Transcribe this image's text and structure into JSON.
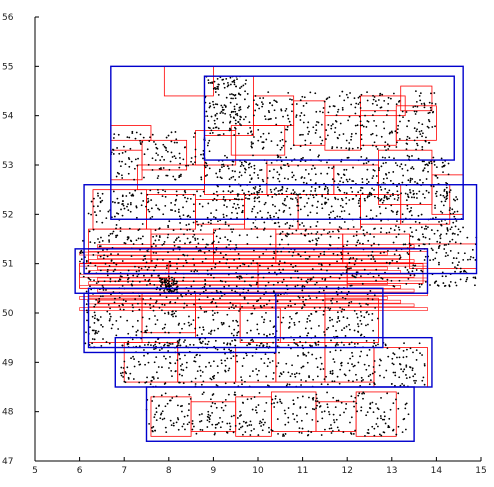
{
  "chart_data": {
    "type": "scatter",
    "title": "",
    "xlabel": "",
    "ylabel": "",
    "xlim": [
      5,
      15
    ],
    "ylim": [
      47,
      56
    ],
    "x_ticks": [
      "5",
      "6",
      "7",
      "8",
      "9",
      "10",
      "11",
      "12",
      "13",
      "14",
      "15"
    ],
    "y_ticks": [
      "47",
      "48",
      "49",
      "50",
      "51",
      "52",
      "53",
      "54",
      "55",
      "56"
    ],
    "grid": false,
    "colors": {
      "points": "#000000",
      "leaf_boxes": "#ff0000",
      "parent_boxes": "#0000cc",
      "axes": "#000000"
    },
    "parent_boxes": [
      {
        "x0": 6.7,
        "x1": 14.6,
        "y0": 51.9,
        "y1": 55.0
      },
      {
        "x0": 8.8,
        "x1": 14.4,
        "y0": 53.1,
        "y1": 54.8
      },
      {
        "x0": 6.1,
        "x1": 14.9,
        "y0": 50.8,
        "y1": 52.6
      },
      {
        "x0": 5.9,
        "x1": 13.8,
        "y0": 50.4,
        "y1": 51.3
      },
      {
        "x0": 6.2,
        "x1": 12.8,
        "y0": 49.3,
        "y1": 50.5
      },
      {
        "x0": 6.1,
        "x1": 10.4,
        "y0": 49.2,
        "y1": 50.4
      },
      {
        "x0": 6.8,
        "x1": 13.9,
        "y0": 48.5,
        "y1": 49.5
      },
      {
        "x0": 7.5,
        "x1": 13.5,
        "y0": 47.4,
        "y1": 48.5
      }
    ],
    "leaf_boxes": [
      {
        "x0": 7.9,
        "x1": 9.0,
        "y0": 54.4,
        "y1": 55.0
      },
      {
        "x0": 8.8,
        "x1": 9.9,
        "y0": 53.6,
        "y1": 54.8
      },
      {
        "x0": 9.9,
        "x1": 10.8,
        "y0": 53.8,
        "y1": 54.4
      },
      {
        "x0": 10.8,
        "x1": 11.5,
        "y0": 53.4,
        "y1": 54.3
      },
      {
        "x0": 11.5,
        "x1": 12.3,
        "y0": 53.3,
        "y1": 54.0
      },
      {
        "x0": 12.3,
        "x1": 13.1,
        "y0": 53.4,
        "y1": 54.1
      },
      {
        "x0": 13.1,
        "x1": 14.0,
        "y0": 53.5,
        "y1": 54.2
      },
      {
        "x0": 13.2,
        "x1": 13.9,
        "y0": 54.1,
        "y1": 54.6
      },
      {
        "x0": 12.3,
        "x1": 13.3,
        "y0": 54.0,
        "y1": 54.4
      },
      {
        "x0": 9.4,
        "x1": 10.6,
        "y0": 53.2,
        "y1": 53.8
      },
      {
        "x0": 8.6,
        "x1": 9.5,
        "y0": 53.0,
        "y1": 53.7
      },
      {
        "x0": 7.4,
        "x1": 8.4,
        "y0": 52.9,
        "y1": 53.5
      },
      {
        "x0": 6.7,
        "x1": 7.4,
        "y0": 52.7,
        "y1": 53.3
      },
      {
        "x0": 6.7,
        "x1": 7.6,
        "y0": 53.5,
        "y1": 53.8
      },
      {
        "x0": 12.7,
        "x1": 13.9,
        "y0": 52.2,
        "y1": 53.3
      },
      {
        "x0": 13.9,
        "x1": 14.6,
        "y0": 52.0,
        "y1": 52.8
      },
      {
        "x0": 11.7,
        "x1": 12.7,
        "y0": 52.4,
        "y1": 53.0
      },
      {
        "x0": 10.2,
        "x1": 11.7,
        "y0": 52.4,
        "y1": 53.0
      },
      {
        "x0": 8.8,
        "x1": 10.2,
        "y0": 52.4,
        "y1": 53.1
      },
      {
        "x0": 7.3,
        "x1": 8.8,
        "y0": 52.5,
        "y1": 53.0
      },
      {
        "x0": 6.3,
        "x1": 7.5,
        "y0": 51.7,
        "y1": 52.5
      },
      {
        "x0": 7.5,
        "x1": 8.6,
        "y0": 51.7,
        "y1": 52.4
      },
      {
        "x0": 8.6,
        "x1": 9.7,
        "y0": 51.8,
        "y1": 52.3
      },
      {
        "x0": 9.7,
        "x1": 10.9,
        "y0": 51.7,
        "y1": 52.4
      },
      {
        "x0": 10.9,
        "x1": 12.3,
        "y0": 51.7,
        "y1": 52.4
      },
      {
        "x0": 12.3,
        "x1": 13.2,
        "y0": 51.8,
        "y1": 52.4
      },
      {
        "x0": 13.2,
        "x1": 14.3,
        "y0": 51.8,
        "y1": 52.6
      },
      {
        "x0": 6.2,
        "x1": 7.6,
        "y0": 51.0,
        "y1": 51.7
      },
      {
        "x0": 7.6,
        "x1": 9.0,
        "y0": 51.0,
        "y1": 51.6
      },
      {
        "x0": 9.0,
        "x1": 10.4,
        "y0": 51.1,
        "y1": 51.7
      },
      {
        "x0": 10.4,
        "x1": 11.9,
        "y0": 51.0,
        "y1": 51.6
      },
      {
        "x0": 11.9,
        "x1": 13.4,
        "y0": 51.0,
        "y1": 51.6
      },
      {
        "x0": 13.4,
        "x1": 14.9,
        "y0": 50.9,
        "y1": 51.4
      },
      {
        "x0": 6.0,
        "x1": 8.0,
        "y0": 50.5,
        "y1": 51.0
      },
      {
        "x0": 8.0,
        "x1": 10.0,
        "y0": 50.5,
        "y1": 51.0
      },
      {
        "x0": 10.0,
        "x1": 12.0,
        "y0": 50.5,
        "y1": 51.0
      },
      {
        "x0": 12.0,
        "x1": 13.7,
        "y0": 50.6,
        "y1": 51.0
      },
      {
        "x0": 6.2,
        "x1": 7.4,
        "y0": 49.4,
        "y1": 50.3
      },
      {
        "x0": 7.4,
        "x1": 8.6,
        "y0": 49.6,
        "y1": 50.4
      },
      {
        "x0": 8.6,
        "x1": 9.6,
        "y0": 49.5,
        "y1": 50.2
      },
      {
        "x0": 9.6,
        "x1": 10.5,
        "y0": 49.4,
        "y1": 50.1
      },
      {
        "x0": 10.4,
        "x1": 11.5,
        "y0": 49.5,
        "y1": 50.4
      },
      {
        "x0": 11.5,
        "x1": 12.7,
        "y0": 49.4,
        "y1": 50.3
      },
      {
        "x0": 7.0,
        "x1": 8.2,
        "y0": 48.6,
        "y1": 49.4
      },
      {
        "x0": 8.2,
        "x1": 9.5,
        "y0": 48.6,
        "y1": 49.3
      },
      {
        "x0": 9.5,
        "x1": 10.4,
        "y0": 48.6,
        "y1": 49.2
      },
      {
        "x0": 10.4,
        "x1": 11.5,
        "y0": 48.6,
        "y1": 49.4
      },
      {
        "x0": 11.5,
        "x1": 12.6,
        "y0": 48.6,
        "y1": 49.3
      },
      {
        "x0": 12.6,
        "x1": 13.8,
        "y0": 48.5,
        "y1": 49.3
      },
      {
        "x0": 7.6,
        "x1": 8.5,
        "y0": 47.5,
        "y1": 48.3
      },
      {
        "x0": 8.5,
        "x1": 9.5,
        "y0": 47.6,
        "y1": 48.2
      },
      {
        "x0": 9.5,
        "x1": 10.3,
        "y0": 47.5,
        "y1": 48.3
      },
      {
        "x0": 10.3,
        "x1": 11.3,
        "y0": 47.6,
        "y1": 48.4
      },
      {
        "x0": 11.3,
        "x1": 12.2,
        "y0": 47.6,
        "y1": 48.2
      },
      {
        "x0": 12.2,
        "x1": 13.1,
        "y0": 47.5,
        "y1": 48.4
      }
    ],
    "point_clusters": [
      {
        "x0": 8.8,
        "x1": 9.8,
        "y0": 53.6,
        "y1": 54.8,
        "n": 150
      },
      {
        "x0": 9.8,
        "x1": 14.0,
        "y0": 53.3,
        "y1": 54.5,
        "n": 320
      },
      {
        "x0": 6.7,
        "x1": 9.0,
        "y0": 52.7,
        "y1": 53.7,
        "n": 140
      },
      {
        "x0": 9.0,
        "x1": 14.3,
        "y0": 52.3,
        "y1": 53.2,
        "n": 380
      },
      {
        "x0": 6.2,
        "x1": 14.6,
        "y0": 51.6,
        "y1": 52.5,
        "n": 520
      },
      {
        "x0": 6.0,
        "x1": 14.9,
        "y0": 50.5,
        "y1": 51.6,
        "n": 650
      },
      {
        "x0": 6.1,
        "x1": 12.7,
        "y0": 49.3,
        "y1": 50.5,
        "n": 520
      },
      {
        "x0": 7.8,
        "x1": 8.2,
        "y0": 50.4,
        "y1": 50.7,
        "n": 80
      },
      {
        "x0": 6.9,
        "x1": 13.8,
        "y0": 48.5,
        "y1": 49.4,
        "n": 400
      },
      {
        "x0": 7.5,
        "x1": 13.4,
        "y0": 47.5,
        "y1": 48.4,
        "n": 330
      }
    ]
  }
}
